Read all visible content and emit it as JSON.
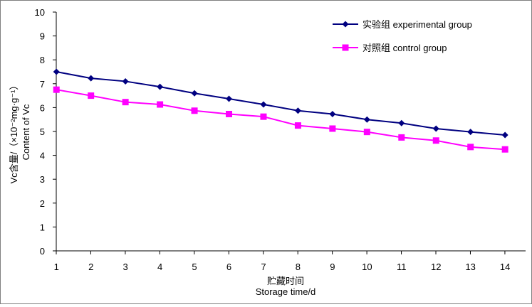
{
  "chart_data": {
    "type": "line",
    "title": "",
    "categories": [
      "1",
      "2",
      "3",
      "4",
      "5",
      "6",
      "7",
      "8",
      "9",
      "10",
      "11",
      "12",
      "13",
      "14"
    ],
    "ylim": [
      0,
      10
    ],
    "yticks": [
      "0",
      "1",
      "2",
      "3",
      "4",
      "5",
      "6",
      "7",
      "8",
      "9",
      "10"
    ],
    "xlabel_cn": "贮藏时间",
    "xlabel_en": "Storage time/d",
    "ylabel_cn": "Vc含量/（×10⁻²mg·g⁻¹）",
    "ylabel_en": "Content of Vc",
    "grid": false,
    "legend_position": "top-right",
    "series": [
      {
        "name": "实验组 experimental group",
        "color": "#000080",
        "marker": "diamond",
        "values": [
          7.5,
          7.23,
          7.1,
          6.87,
          6.6,
          6.37,
          6.13,
          5.87,
          5.73,
          5.5,
          5.35,
          5.12,
          4.98,
          4.85
        ]
      },
      {
        "name": "对照组 control group",
        "color": "#ff00ff",
        "marker": "square",
        "values": [
          6.75,
          6.5,
          6.23,
          6.13,
          5.87,
          5.73,
          5.62,
          5.25,
          5.12,
          4.98,
          4.75,
          4.62,
          4.35,
          4.25
        ]
      }
    ]
  }
}
